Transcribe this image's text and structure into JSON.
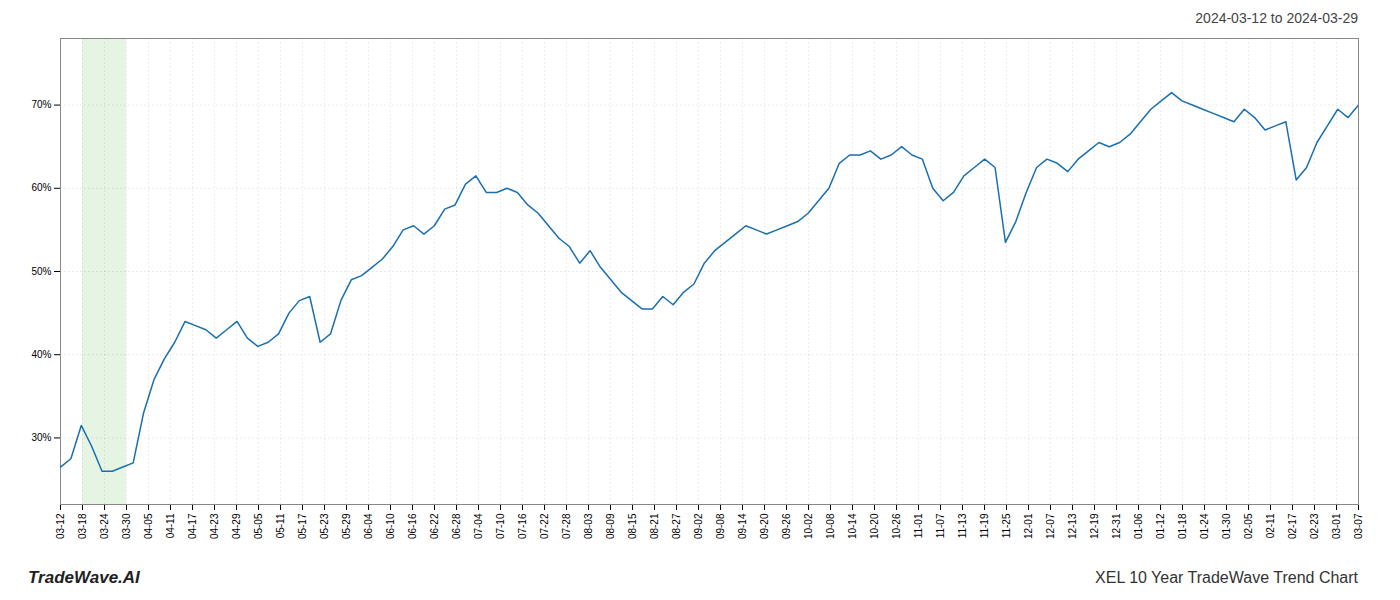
{
  "chart_data": {
    "type": "line",
    "title": "XEL 10 Year TradeWave Trend Chart",
    "subtitle": "2024-03-12 to 2024-03-29",
    "annotations": [
      "TradeWave.AI"
    ],
    "color": "#1a6faf",
    "grid": true,
    "x": [
      0,
      1,
      2,
      3,
      4,
      5,
      6,
      7,
      8,
      9,
      10,
      11,
      12,
      13,
      14,
      15,
      16,
      17,
      18,
      19,
      20,
      21,
      22,
      23,
      24,
      25,
      26,
      27,
      28,
      29,
      30,
      31,
      32,
      33,
      34,
      35,
      36,
      37,
      38,
      39,
      40,
      41,
      42,
      43,
      44,
      45,
      46,
      47,
      48,
      49,
      50,
      51,
      52,
      53,
      54,
      55,
      56,
      57,
      58,
      59,
      60,
      61,
      62,
      63,
      64,
      65,
      66,
      67,
      68,
      69,
      70,
      71,
      72,
      73,
      74,
      75,
      76,
      77,
      78,
      79,
      80,
      81,
      82,
      83,
      84,
      85,
      86,
      87,
      88,
      89,
      90,
      91,
      92,
      93,
      94,
      95,
      96,
      97,
      98,
      99,
      100,
      101,
      102,
      103,
      104,
      105,
      106,
      107,
      108,
      109,
      110,
      111,
      112,
      113,
      114,
      115,
      116,
      117,
      118,
      119,
      120,
      121,
      122,
      123,
      124,
      125
    ],
    "values": [
      26.5,
      27.5,
      31.5,
      29.0,
      26.0,
      26.0,
      26.5,
      27.0,
      33.0,
      37.0,
      39.5,
      41.5,
      44.0,
      43.5,
      43.0,
      42.0,
      43.0,
      44.0,
      42.0,
      41.0,
      41.5,
      42.5,
      45.0,
      46.5,
      47.0,
      41.5,
      42.5,
      46.5,
      49.0,
      49.5,
      50.5,
      51.5,
      53.0,
      55.0,
      55.5,
      54.5,
      55.5,
      57.5,
      58.0,
      60.5,
      61.5,
      59.5,
      59.5,
      60.0,
      59.5,
      58.0,
      57.0,
      55.5,
      54.0,
      53.0,
      51.0,
      52.5,
      50.5,
      49.0,
      47.5,
      46.5,
      45.5,
      45.5,
      47.0,
      46.0,
      47.5,
      48.5,
      51.0,
      52.5,
      53.5,
      54.5,
      55.5,
      55.0,
      54.5,
      55.0,
      55.5,
      56.0,
      57.0,
      58.5,
      60.0,
      63.0,
      64.0,
      64.0,
      64.5,
      63.5,
      64.0,
      65.0,
      64.0,
      63.5,
      60.0,
      58.5,
      59.5,
      61.5,
      62.5,
      63.5,
      62.5,
      53.5,
      56.0,
      59.5,
      62.5,
      63.5,
      63.0,
      62.0,
      63.5,
      64.5,
      65.5,
      65.0,
      65.5,
      66.5,
      68.0,
      69.5,
      70.5,
      71.5,
      70.5,
      70.0,
      69.5,
      69.0,
      68.5,
      68.0,
      69.5,
      68.5,
      67.0,
      67.5,
      68.0,
      61.0,
      62.5,
      65.5,
      67.5,
      69.5,
      68.5,
      70.0
    ],
    "xlim": [
      0,
      125
    ],
    "xticks": [
      {
        "value": 0,
        "label": "03-12"
      },
      {
        "value": 2.1186,
        "label": "03-18"
      },
      {
        "value": 4.2373,
        "label": "03-24"
      },
      {
        "value": 6.3559,
        "label": "03-30"
      },
      {
        "value": 8.4746,
        "label": "04-05"
      },
      {
        "value": 10.5932,
        "label": "04-11"
      },
      {
        "value": 12.7119,
        "label": "04-17"
      },
      {
        "value": 14.8305,
        "label": "04-23"
      },
      {
        "value": 16.9492,
        "label": "04-29"
      },
      {
        "value": 19.0678,
        "label": "05-05"
      },
      {
        "value": 21.1864,
        "label": "05-11"
      },
      {
        "value": 23.3051,
        "label": "05-17"
      },
      {
        "value": 25.4237,
        "label": "05-23"
      },
      {
        "value": 27.5424,
        "label": "05-29"
      },
      {
        "value": 29.661,
        "label": "06-04"
      },
      {
        "value": 31.7797,
        "label": "06-10"
      },
      {
        "value": 33.8983,
        "label": "06-16"
      },
      {
        "value": 36.0169,
        "label": "06-22"
      },
      {
        "value": 38.1356,
        "label": "06-28"
      },
      {
        "value": 40.2542,
        "label": "07-04"
      },
      {
        "value": 42.3729,
        "label": "07-10"
      },
      {
        "value": 44.4915,
        "label": "07-16"
      },
      {
        "value": 46.6102,
        "label": "07-22"
      },
      {
        "value": 48.7288,
        "label": "07-28"
      },
      {
        "value": 50.8475,
        "label": "08-03"
      },
      {
        "value": 52.9661,
        "label": "08-09"
      },
      {
        "value": 55.0847,
        "label": "08-15"
      },
      {
        "value": 57.2034,
        "label": "08-21"
      },
      {
        "value": 59.322,
        "label": "08-27"
      },
      {
        "value": 61.4407,
        "label": "09-02"
      },
      {
        "value": 63.5593,
        "label": "09-08"
      },
      {
        "value": 65.678,
        "label": "09-14"
      },
      {
        "value": 67.7966,
        "label": "09-20"
      },
      {
        "value": 69.9153,
        "label": "09-26"
      },
      {
        "value": 72.0339,
        "label": "10-02"
      },
      {
        "value": 74.1525,
        "label": "10-08"
      },
      {
        "value": 76.2712,
        "label": "10-14"
      },
      {
        "value": 78.3898,
        "label": "10-20"
      },
      {
        "value": 80.5085,
        "label": "10-26"
      },
      {
        "value": 82.6271,
        "label": "11-01"
      },
      {
        "value": 84.7458,
        "label": "11-07"
      },
      {
        "value": 86.8644,
        "label": "11-13"
      },
      {
        "value": 88.9831,
        "label": "11-19"
      },
      {
        "value": 91.1017,
        "label": "11-25"
      },
      {
        "value": 93.2203,
        "label": "12-01"
      },
      {
        "value": 95.339,
        "label": "12-07"
      },
      {
        "value": 97.4576,
        "label": "12-13"
      },
      {
        "value": 99.5763,
        "label": "12-19"
      },
      {
        "value": 101.6949,
        "label": "12-31"
      },
      {
        "value": 103.8136,
        "label": "01-06"
      },
      {
        "value": 105.9322,
        "label": "01-12"
      },
      {
        "value": 108.0508,
        "label": "01-18"
      },
      {
        "value": 110.1695,
        "label": "01-24"
      },
      {
        "value": 112.2881,
        "label": "01-30"
      },
      {
        "value": 114.4068,
        "label": "02-05"
      },
      {
        "value": 116.5254,
        "label": "02-11"
      },
      {
        "value": 118.6441,
        "label": "02-17"
      },
      {
        "value": 120.7627,
        "label": "02-23"
      },
      {
        "value": 122.8814,
        "label": "03-01"
      },
      {
        "value": 125,
        "label": "03-07"
      }
    ],
    "ylim": [
      22,
      78
    ],
    "yticks": [
      {
        "value": 30,
        "label": "30%"
      },
      {
        "value": 40,
        "label": "40%"
      },
      {
        "value": 50,
        "label": "50%"
      },
      {
        "value": 60,
        "label": "60%"
      },
      {
        "value": 70,
        "label": "70%"
      }
    ],
    "shade": {
      "start": "03-18",
      "end": "03-30",
      "color": "#d6ecd2"
    }
  }
}
